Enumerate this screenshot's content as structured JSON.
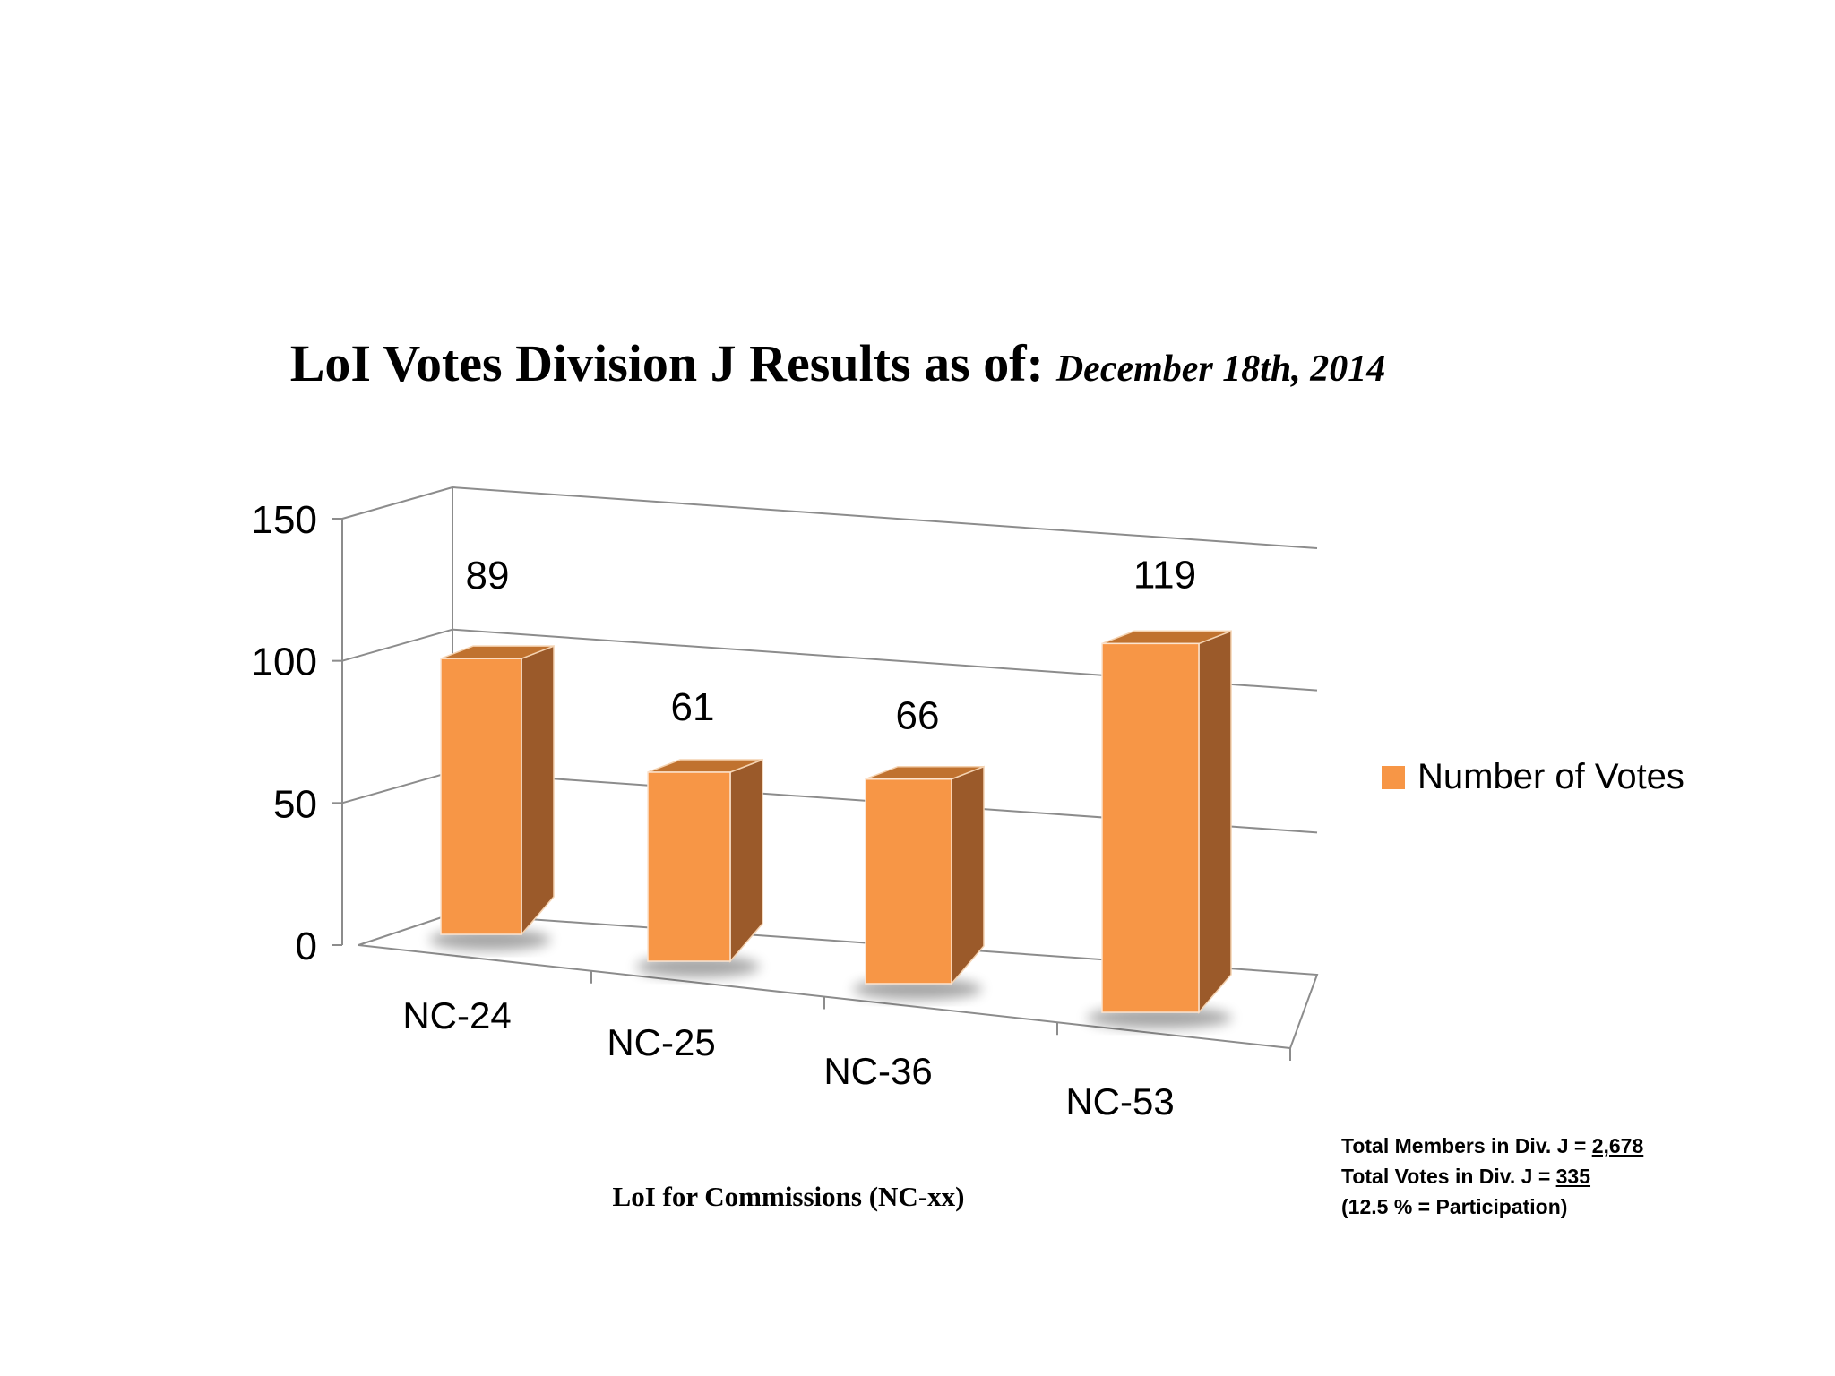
{
  "header": {
    "title": "LoI Votes Division J Results as of",
    "colon": ":",
    "date": "December 18th, 2014"
  },
  "chart_data": {
    "type": "bar",
    "title": "LoI Votes Division J Results as of: December 18th, 2014",
    "xlabel": "LoI for Commissions (NC-xx)",
    "ylabel": "",
    "categories": [
      "NC-24",
      "NC-25",
      "NC-36",
      "NC-53"
    ],
    "series": [
      {
        "name": "Number of Votes",
        "values": [
          89,
          61,
          66,
          119
        ]
      }
    ],
    "ylim": [
      0,
      150
    ],
    "yticks": [
      0,
      50,
      100,
      150
    ],
    "grid": true,
    "style": "3d-column",
    "legend_position": "right",
    "colors": {
      "bar_front": "#F79646",
      "bar_side": "#9B5A2A",
      "bar_top": "#C0722F",
      "grid": "#8C8C8C"
    }
  },
  "footer": {
    "xaxis_title": "LoI for Commissions (NC-xx)",
    "members_label": "Total Members in Div. J = ",
    "members_value": "2,678",
    "votes_label": "Total Votes in Div. J = ",
    "votes_value": "335",
    "participation": "(12.5 % = Participation)"
  }
}
